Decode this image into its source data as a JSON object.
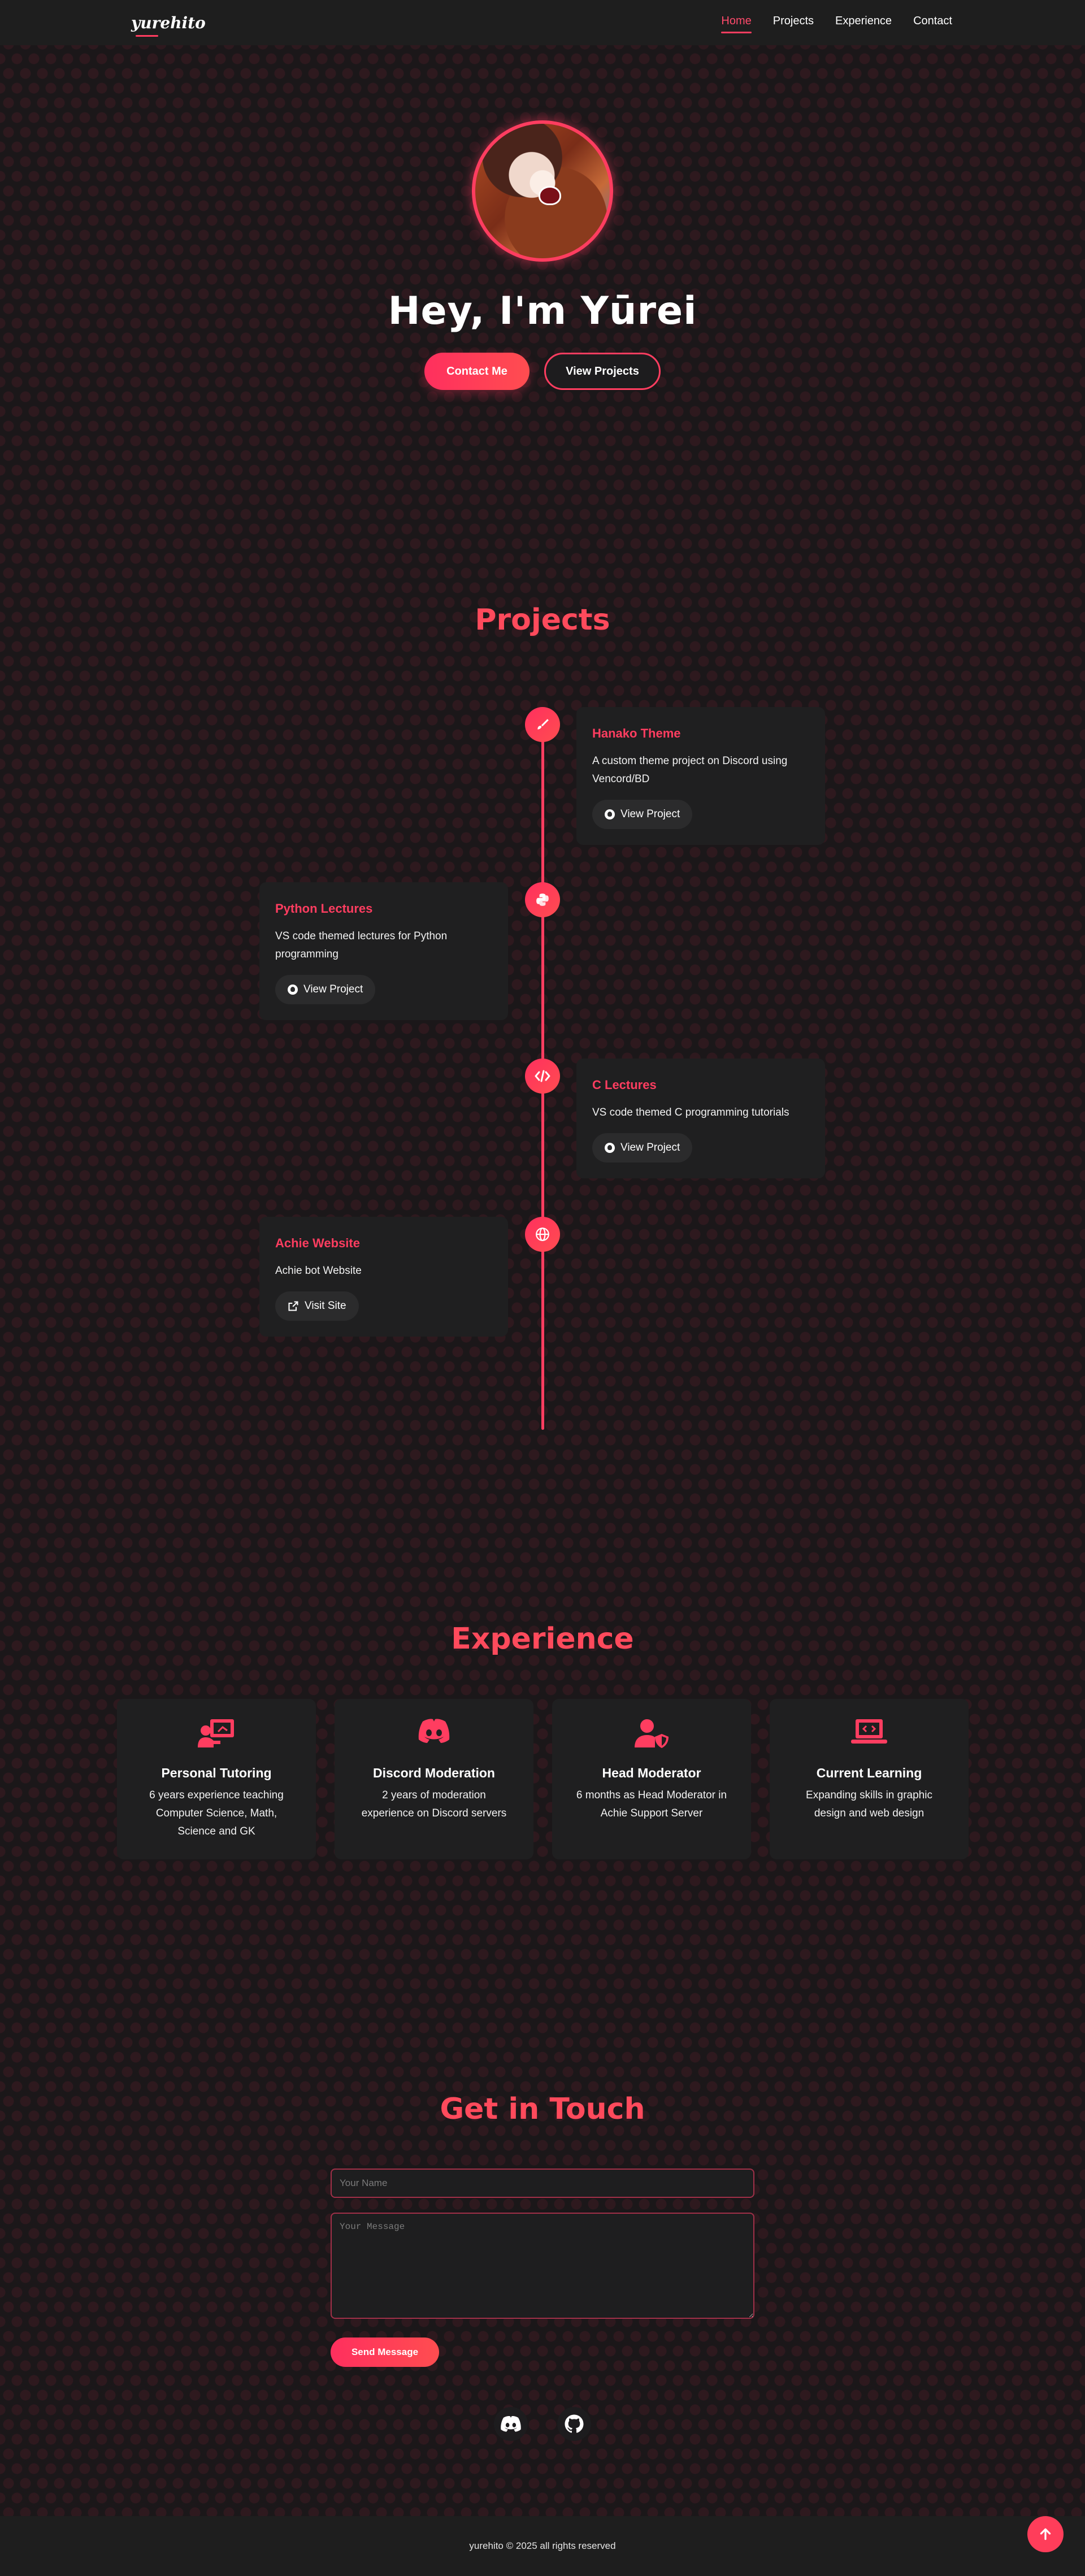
{
  "nav": {
    "logo": "yurehito",
    "links": [
      "Home",
      "Projects",
      "Experience",
      "Contact"
    ],
    "active": "Home"
  },
  "hero": {
    "title": "Hey, I'm Yūrei",
    "contact_button": "Contact Me",
    "projects_button": "View Projects"
  },
  "projects": {
    "title": "Projects",
    "items": [
      {
        "name": "Hanako Theme",
        "description": "A custom theme project on Discord using Vencord/BD",
        "button": "View Project",
        "icon": "brush-icon"
      },
      {
        "name": "Python Lectures",
        "description": "VS code themed lectures for Python programming",
        "button": "View Project",
        "icon": "python-icon"
      },
      {
        "name": "C Lectures",
        "description": "VS code themed C programming tutorials",
        "button": "View Project",
        "icon": "code-icon"
      },
      {
        "name": "Achie Website",
        "description": "Achie bot Website",
        "button": "Visit Site",
        "icon": "globe-icon"
      }
    ]
  },
  "experience": {
    "title": "Experience",
    "items": [
      {
        "title": "Personal Tutoring",
        "description": "6 years experience teaching Computer Science, Math, Science and GK",
        "icon": "teacher-icon"
      },
      {
        "title": "Discord Moderation",
        "description": "2 years of moderation experience on Discord servers",
        "icon": "discord-icon"
      },
      {
        "title": "Head Moderator",
        "description": "6 months as Head Moderator in Achie Support Server",
        "icon": "user-shield-icon"
      },
      {
        "title": "Current Learning",
        "description": "Expanding skills in graphic design and web design",
        "icon": "laptop-code-icon"
      }
    ]
  },
  "contact": {
    "title": "Get in Touch",
    "name_placeholder": "Your Name",
    "message_placeholder": "Your Message",
    "send_button": "Send Message"
  },
  "socials": [
    "discord-icon",
    "github-icon"
  ],
  "footer": {
    "text": "yurehito © 2025 all rights reserved"
  },
  "colors": {
    "accent": "#ff3d60",
    "background": "#1b1719",
    "card": "#1f1f20"
  }
}
